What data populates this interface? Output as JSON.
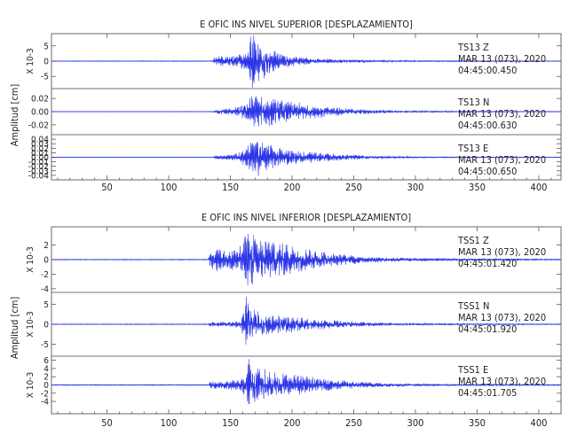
{
  "colors": {
    "trace": "#2a35e6",
    "axis": "#444444"
  },
  "chart_data": [
    {
      "type": "line",
      "title": "E OFIC INS NIVEL SUPERIOR [DESPLAZAMIENTO]",
      "ylabel": "Amplitud [cm]",
      "xlim": [
        5,
        418
      ],
      "xticks": [
        50,
        100,
        150,
        200,
        250,
        300,
        350,
        400
      ],
      "xtick_labels": [
        "50",
        "100",
        "150",
        "200",
        "250",
        "300",
        "350",
        "400"
      ],
      "series": [
        {
          "name": "TS13 Z",
          "label_station": "TS13 Z",
          "label_date": "MAR 13 (073), 2020",
          "label_time": "04:45:00.450",
          "scale_label": "X 10-3",
          "ylim": [
            -9,
            9
          ],
          "yticks": [
            -5,
            0,
            5
          ],
          "ytick_labels": [
            "-5",
            "0",
            "5"
          ],
          "envelope": [
            [
              5,
              0.1
            ],
            [
              136,
              0.12
            ],
            [
              137,
              1.5
            ],
            [
              150,
              1.6
            ],
            [
              158,
              2.2
            ],
            [
              164,
              3
            ],
            [
              166,
              7
            ],
            [
              170,
              9
            ],
            [
              173,
              6.5
            ],
            [
              180,
              4
            ],
            [
              190,
              2.5
            ],
            [
              200,
              1.5
            ],
            [
              215,
              1.0
            ],
            [
              235,
              0.6
            ],
            [
              270,
              0.3
            ],
            [
              310,
              0.2
            ],
            [
              418,
              0.1
            ]
          ]
        },
        {
          "name": "TS13 N",
          "label_station": "TS13 N",
          "label_date": "MAR 13 (073), 2020",
          "label_time": "04:45:00.630",
          "scale_label": "",
          "ylim": [
            -0.035,
            0.035
          ],
          "yticks": [
            -0.02,
            0,
            0.02
          ],
          "ytick_labels": [
            "-0.02",
            "0.00",
            "0.02"
          ],
          "envelope": [
            [
              5,
              0.0003
            ],
            [
              136,
              0.0004
            ],
            [
              138,
              0.003
            ],
            [
              150,
              0.005
            ],
            [
              158,
              0.008
            ],
            [
              164,
              0.015
            ],
            [
              168,
              0.024
            ],
            [
              172,
              0.027
            ],
            [
              178,
              0.023
            ],
            [
              185,
              0.018
            ],
            [
              195,
              0.015
            ],
            [
              208,
              0.012
            ],
            [
              225,
              0.008
            ],
            [
              250,
              0.004
            ],
            [
              280,
              0.002
            ],
            [
              320,
              0.001
            ],
            [
              418,
              0.0004
            ]
          ]
        },
        {
          "name": "TS13 E",
          "label_station": "TS13 E",
          "label_date": "MAR 13 (073), 2020",
          "label_time": "04:45:00.650",
          "scale_label": "",
          "ylim": [
            -0.05,
            0.05
          ],
          "yticks": [
            -0.04,
            -0.03,
            -0.02,
            -0.01,
            0,
            0.01,
            0.02,
            0.03,
            0.04
          ],
          "ytick_labels": [
            "-0.04",
            "-0.03",
            "-0.02",
            "-0.01",
            "0.00",
            "0.01",
            "0.02",
            "0.03",
            "0.04"
          ],
          "envelope": [
            [
              5,
              0.0004
            ],
            [
              136,
              0.0005
            ],
            [
              138,
              0.004
            ],
            [
              150,
              0.006
            ],
            [
              158,
              0.01
            ],
            [
              164,
              0.025
            ],
            [
              168,
              0.036
            ],
            [
              172,
              0.038
            ],
            [
              178,
              0.03
            ],
            [
              185,
              0.022
            ],
            [
              195,
              0.016
            ],
            [
              210,
              0.012
            ],
            [
              230,
              0.008
            ],
            [
              255,
              0.004
            ],
            [
              290,
              0.002
            ],
            [
              330,
              0.001
            ],
            [
              418,
              0.0005
            ]
          ]
        }
      ]
    },
    {
      "type": "line",
      "title": "E OFIC INS NIVEL INFERIOR [DESPLAZAMIENTO]",
      "ylabel": "Amplitud [cm]",
      "xlim": [
        5,
        418
      ],
      "xticks": [
        50,
        100,
        150,
        200,
        250,
        300,
        350,
        400
      ],
      "xtick_labels": [
        "50",
        "100",
        "150",
        "200",
        "250",
        "300",
        "350",
        "400"
      ],
      "series": [
        {
          "name": "TSS1 Z",
          "label_station": "TSS1 Z",
          "label_date": "MAR 13 (073), 2020",
          "label_time": "04:45:01.420",
          "scale_label": "X 10-3",
          "ylim": [
            -4.5,
            4.5
          ],
          "yticks": [
            -4,
            -2,
            0,
            2
          ],
          "ytick_labels": [
            "-4",
            "-2",
            "0",
            "2"
          ],
          "envelope": [
            [
              5,
              0.05
            ],
            [
              132,
              0.06
            ],
            [
              134,
              1.6
            ],
            [
              140,
              1.4
            ],
            [
              150,
              1.3
            ],
            [
              158,
              1.8
            ],
            [
              162,
              3
            ],
            [
              165,
              4.2
            ],
            [
              170,
              3.2
            ],
            [
              180,
              2.6
            ],
            [
              195,
              2.0
            ],
            [
              215,
              1.3
            ],
            [
              235,
              0.8
            ],
            [
              260,
              0.4
            ],
            [
              300,
              0.2
            ],
            [
              418,
              0.08
            ]
          ]
        },
        {
          "name": "TSS1 N",
          "label_station": "TSS1 N",
          "label_date": "MAR 13 (073), 2020",
          "label_time": "04:45:01.920",
          "scale_label": "X 10-3",
          "ylim": [
            -8,
            8
          ],
          "yticks": [
            -5,
            0,
            5
          ],
          "ytick_labels": [
            "-5",
            "0",
            "5"
          ],
          "envelope": [
            [
              5,
              0.08
            ],
            [
              132,
              0.1
            ],
            [
              134,
              0.7
            ],
            [
              150,
              0.6
            ],
            [
              158,
              1.0
            ],
            [
              161,
              3
            ],
            [
              163,
              7.5
            ],
            [
              166,
              4.5
            ],
            [
              172,
              3.0
            ],
            [
              185,
              2.2
            ],
            [
              200,
              1.8
            ],
            [
              220,
              1.2
            ],
            [
              245,
              0.7
            ],
            [
              275,
              0.35
            ],
            [
              320,
              0.2
            ],
            [
              418,
              0.1
            ]
          ]
        },
        {
          "name": "TSS1 E",
          "label_station": "TSS1 E",
          "label_date": "MAR 13 (073), 2020",
          "label_time": "04:45:01.705",
          "scale_label": "X 10-3",
          "ylim": [
            -7,
            7
          ],
          "yticks": [
            -4,
            -2,
            0,
            2,
            4,
            6
          ],
          "ytick_labels": [
            "-4",
            "-2",
            "0",
            "2",
            "4",
            "6"
          ],
          "envelope": [
            [
              5,
              0.1
            ],
            [
              132,
              0.12
            ],
            [
              134,
              0.8
            ],
            [
              150,
              1.0
            ],
            [
              158,
              1.4
            ],
            [
              162,
              3.5
            ],
            [
              165,
              6.2
            ],
            [
              170,
              4.8
            ],
            [
              178,
              3.6
            ],
            [
              190,
              2.8
            ],
            [
              205,
              2.2
            ],
            [
              225,
              1.4
            ],
            [
              250,
              0.8
            ],
            [
              280,
              0.4
            ],
            [
              330,
              0.2
            ],
            [
              418,
              0.12
            ]
          ]
        }
      ]
    }
  ]
}
